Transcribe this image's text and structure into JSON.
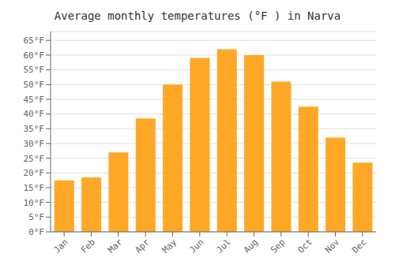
{
  "chart_data": {
    "type": "bar",
    "title": "Average monthly temperatures (°F ) in Narva",
    "categories": [
      "Jan",
      "Feb",
      "Mar",
      "Apr",
      "May",
      "Jun",
      "Jul",
      "Aug",
      "Sep",
      "Oct",
      "Nov",
      "Dec"
    ],
    "values": [
      17.5,
      18.5,
      27,
      38.5,
      50,
      59,
      62,
      60,
      51,
      42.5,
      32,
      23.5
    ],
    "color": "#FFA726",
    "ylim": [
      0,
      68
    ],
    "yticks": [
      {
        "value": 0,
        "label": "0°F"
      },
      {
        "value": 5,
        "label": "5°F"
      },
      {
        "value": 10,
        "label": "10°F"
      },
      {
        "value": 15,
        "label": "15°F"
      },
      {
        "value": 20,
        "label": "20°F"
      },
      {
        "value": 25,
        "label": "25°F"
      },
      {
        "value": 30,
        "label": "30°F"
      },
      {
        "value": 35,
        "label": "35°F"
      },
      {
        "value": 40,
        "label": "40°F"
      },
      {
        "value": 45,
        "label": "45°F"
      },
      {
        "value": 50,
        "label": "50°F"
      },
      {
        "value": 55,
        "label": "55°F"
      },
      {
        "value": 60,
        "label": "60°F"
      },
      {
        "value": 65,
        "label": "65°F"
      }
    ],
    "grid": true
  }
}
